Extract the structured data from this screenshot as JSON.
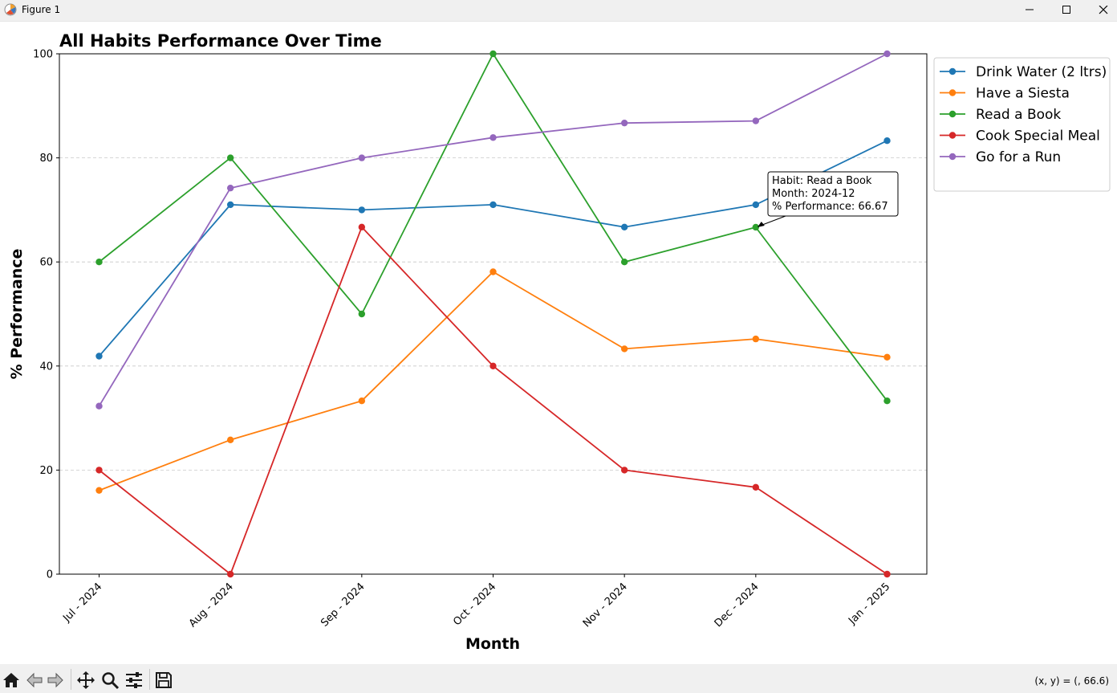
{
  "window": {
    "title": "Figure 1",
    "icons": [
      "matplotlib-icon",
      "minimize-icon",
      "maximize-icon",
      "close-icon"
    ]
  },
  "toolbar": {
    "buttons": [
      "home-icon",
      "back-icon",
      "forward-icon",
      "pan-icon",
      "zoom-icon",
      "configure-subplots-icon",
      "save-icon"
    ],
    "coords_text": "(x, y) = (, 66.6)"
  },
  "chart_data": {
    "type": "line",
    "title": "All Habits Performance Over Time",
    "xlabel": "Month",
    "ylabel": "% Performance",
    "categories": [
      "Jul - 2024",
      "Aug - 2024",
      "Sep - 2024",
      "Oct - 2024",
      "Nov - 2024",
      "Dec - 2024",
      "Jan - 2025"
    ],
    "ylim": [
      0,
      100
    ],
    "yticks": [
      0,
      20,
      40,
      60,
      80,
      100
    ],
    "grid": "horizontal-dashed",
    "legend_position": "outside-top-right",
    "series": [
      {
        "name": "Drink Water (2 ltrs)",
        "color": "#1f77b4",
        "values": [
          41.9,
          71.0,
          70.0,
          71.0,
          66.7,
          71.0,
          83.3
        ]
      },
      {
        "name": "Have a Siesta",
        "color": "#ff7f0e",
        "values": [
          16.1,
          25.8,
          33.3,
          58.1,
          43.3,
          45.2,
          41.7
        ]
      },
      {
        "name": "Read a Book",
        "color": "#2ca02c",
        "values": [
          60.0,
          80.0,
          50.0,
          100.0,
          60.0,
          66.67,
          33.3
        ]
      },
      {
        "name": "Cook Special Meal",
        "color": "#d62728",
        "values": [
          20.0,
          0.0,
          66.7,
          40.0,
          20.0,
          16.7,
          0.0
        ]
      },
      {
        "name": "Go for a Run",
        "color": "#9467bd",
        "values": [
          32.3,
          74.2,
          80.0,
          83.9,
          86.7,
          87.1,
          100.0
        ]
      }
    ],
    "annotation": {
      "series_index": 2,
      "point_index": 5,
      "lines": [
        "Habit: Read a Book",
        "Month: 2024-12",
        "% Performance: 66.67"
      ]
    }
  }
}
